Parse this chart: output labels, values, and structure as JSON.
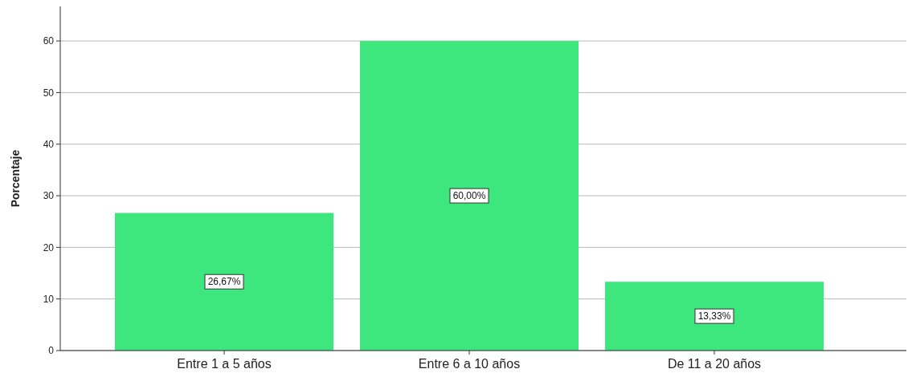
{
  "chart_data": {
    "type": "bar",
    "ylabel": "Porcentaje",
    "categories": [
      "Entre 1 a 5 años",
      "Entre 6 a 10 años",
      "De 11 a 20 años"
    ],
    "values": [
      26.67,
      60,
      13.33
    ],
    "value_labels": [
      "26,67%",
      "60,00%",
      "13,33%"
    ],
    "color": "#3ee67e",
    "ylim": [
      0,
      66.7
    ],
    "yticks": [
      0,
      10,
      20,
      30,
      40,
      50,
      60
    ],
    "grid": "y"
  }
}
